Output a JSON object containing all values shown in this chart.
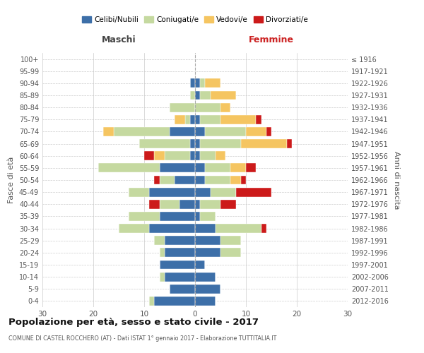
{
  "age_groups": [
    "0-4",
    "5-9",
    "10-14",
    "15-19",
    "20-24",
    "25-29",
    "30-34",
    "35-39",
    "40-44",
    "45-49",
    "50-54",
    "55-59",
    "60-64",
    "65-69",
    "70-74",
    "75-79",
    "80-84",
    "85-89",
    "90-94",
    "95-99",
    "100+"
  ],
  "birth_years": [
    "2012-2016",
    "2007-2011",
    "2002-2006",
    "1997-2001",
    "1992-1996",
    "1987-1991",
    "1982-1986",
    "1977-1981",
    "1972-1976",
    "1967-1971",
    "1962-1966",
    "1957-1961",
    "1952-1956",
    "1947-1951",
    "1942-1946",
    "1937-1941",
    "1932-1936",
    "1927-1931",
    "1922-1926",
    "1917-1921",
    "≤ 1916"
  ],
  "males": {
    "celibi": [
      8,
      5,
      6,
      7,
      6,
      6,
      9,
      7,
      3,
      9,
      4,
      7,
      1,
      1,
      5,
      1,
      0,
      0,
      1,
      0,
      0
    ],
    "coniugati": [
      1,
      0,
      1,
      0,
      1,
      2,
      6,
      6,
      4,
      4,
      3,
      12,
      5,
      10,
      11,
      1,
      5,
      1,
      0,
      0,
      0
    ],
    "vedovi": [
      0,
      0,
      0,
      0,
      0,
      0,
      0,
      0,
      0,
      0,
      0,
      0,
      2,
      0,
      2,
      2,
      0,
      0,
      0,
      0,
      0
    ],
    "divorziati": [
      0,
      0,
      0,
      0,
      0,
      0,
      0,
      0,
      2,
      0,
      1,
      0,
      2,
      0,
      0,
      0,
      0,
      0,
      0,
      0,
      0
    ]
  },
  "females": {
    "nubili": [
      4,
      5,
      4,
      2,
      5,
      5,
      4,
      1,
      1,
      3,
      2,
      2,
      1,
      1,
      2,
      1,
      0,
      1,
      1,
      0,
      0
    ],
    "coniugate": [
      0,
      0,
      0,
      0,
      4,
      4,
      9,
      3,
      4,
      5,
      5,
      5,
      3,
      8,
      8,
      4,
      5,
      2,
      1,
      0,
      0
    ],
    "vedove": [
      0,
      0,
      0,
      0,
      0,
      0,
      0,
      0,
      0,
      0,
      2,
      3,
      2,
      9,
      4,
      7,
      2,
      5,
      3,
      0,
      0
    ],
    "divorziate": [
      0,
      0,
      0,
      0,
      0,
      0,
      1,
      0,
      3,
      7,
      1,
      2,
      0,
      1,
      1,
      1,
      0,
      0,
      0,
      0,
      0
    ]
  },
  "color_celibi": "#3d6fa8",
  "color_coniugati": "#c5d9a0",
  "color_vedovi": "#f5c561",
  "color_divorziati": "#cc1a1a",
  "title": "Popolazione per età, sesso e stato civile - 2017",
  "subtitle": "COMUNE DI CASTEL ROCCHERO (AT) - Dati ISTAT 1° gennaio 2017 - Elaborazione TUTTITALIA.IT",
  "xlabel_left": "Maschi",
  "xlabel_right": "Femmine",
  "ylabel_left": "Fasce di età",
  "ylabel_right": "Anni di nascita",
  "xlim": 30,
  "legend_labels": [
    "Celibi/Nubili",
    "Coniugati/e",
    "Vedovi/e",
    "Divorziati/e"
  ],
  "bg_color": "#ffffff",
  "grid_color": "#cccccc"
}
